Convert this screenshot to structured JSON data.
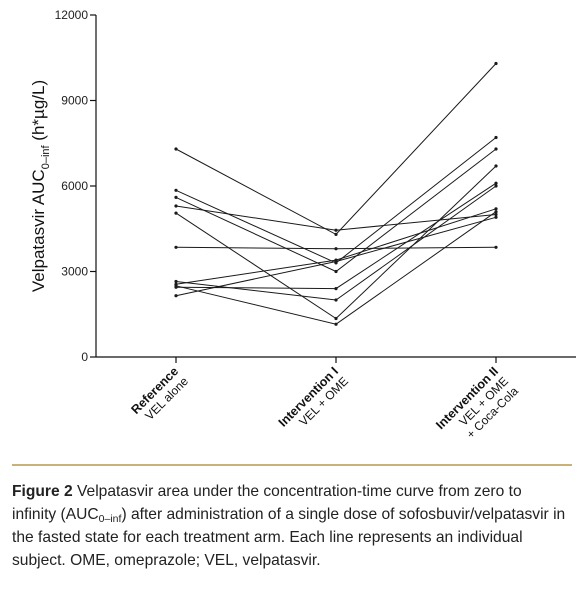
{
  "chart_data": {
    "type": "line",
    "categories": [
      {
        "bold": "Reference",
        "sub": [
          "VEL alone"
        ]
      },
      {
        "bold": "Intervention I",
        "sub": [
          "VEL + OME"
        ]
      },
      {
        "bold": "Intervention II",
        "sub": [
          "VEL + OME",
          "+ Coca-Cola"
        ]
      }
    ],
    "ylabel_main": "Velpatasvir AUC",
    "ylabel_sub": "0–inf",
    "ylabel_unit": " (h*µg/L)",
    "ylim": [
      0,
      12000
    ],
    "yticks": [
      0,
      3000,
      6000,
      9000,
      12000
    ],
    "ytick_labels": [
      "0",
      "3000",
      "6000",
      "9000",
      "12000"
    ],
    "grid": false,
    "legend": "none",
    "line_color": "#1a1a1a",
    "series": [
      {
        "values": [
          7300,
          4300,
          10300
        ]
      },
      {
        "values": [
          5850,
          3300,
          7700
        ]
      },
      {
        "values": [
          5600,
          3000,
          7300
        ]
      },
      {
        "values": [
          5300,
          4450,
          5000
        ]
      },
      {
        "values": [
          5050,
          1350,
          6700
        ]
      },
      {
        "values": [
          3850,
          3800,
          3850
        ]
      },
      {
        "values": [
          2650,
          2000,
          6000
        ]
      },
      {
        "values": [
          2550,
          3400,
          5200
        ]
      },
      {
        "values": [
          2450,
          2400,
          6100
        ]
      },
      {
        "values": [
          2150,
          3350,
          4900
        ]
      },
      {
        "values": [
          2500,
          1150,
          5100
        ]
      }
    ]
  },
  "caption": {
    "label": "Figure 2",
    "text_1": " Velpatasvir area under the concentration-time curve from zero to infinity (AUC",
    "sub": "0–inf",
    "text_2": ") after administration of a single dose of sofosbuvir/velpatasvir in the fasted state for each treatment arm. Each line represents an individual subject. OME, omeprazole; VEL, velpatasvir."
  }
}
